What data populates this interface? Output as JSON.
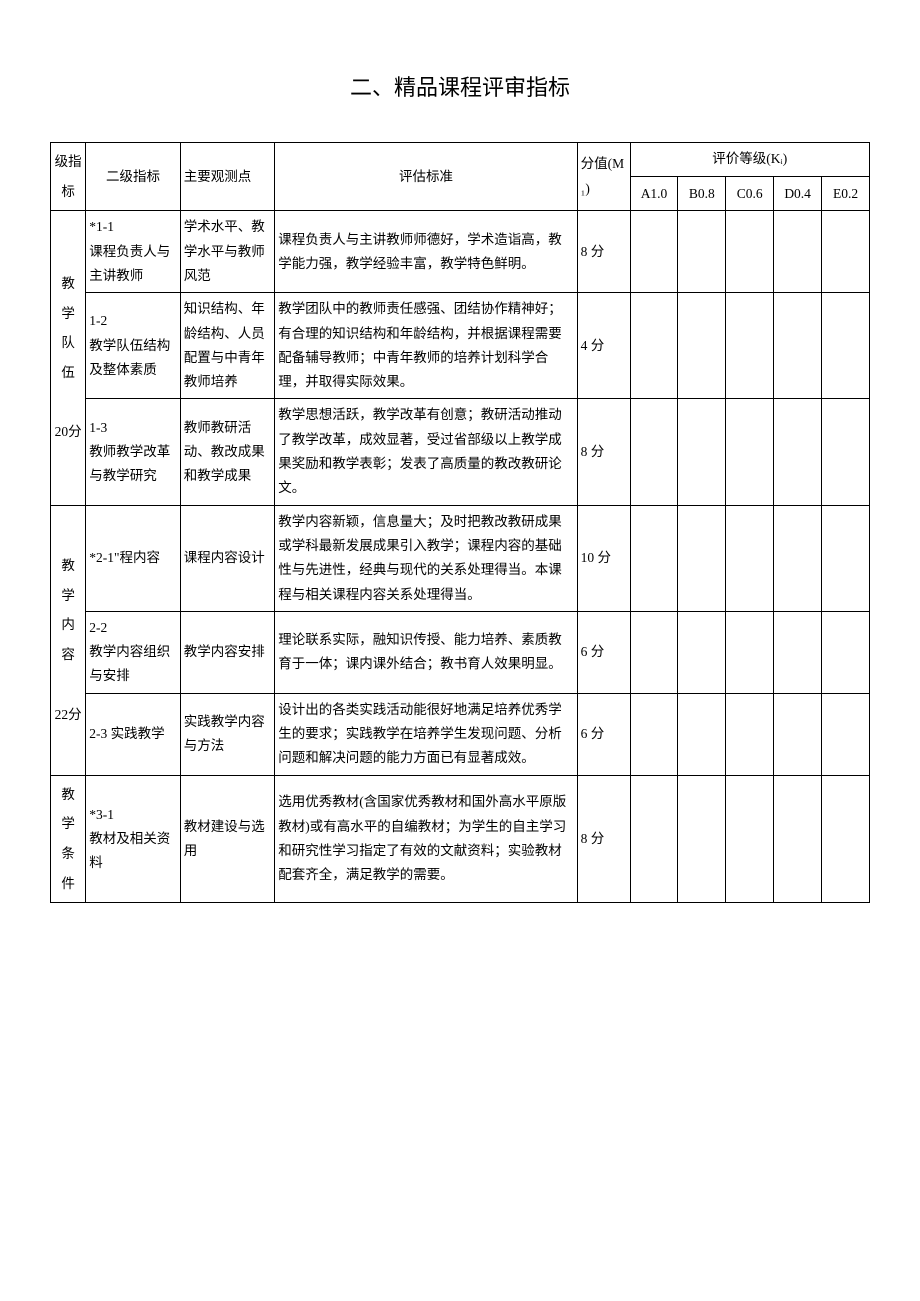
{
  "title": "二、精品课程评审指标",
  "header": {
    "l1": "级指标",
    "l2": "二级指标",
    "obs": "主要观测点",
    "std": "评估标准",
    "score": "分值(M₁)",
    "grade_group": "评价等级(Kᵢ)",
    "grades": [
      "A1.0",
      "B0.8",
      "C0.6",
      "D0.4",
      "E0.2"
    ]
  },
  "groups": [
    {
      "l1": "教学队伍",
      "l1_suffix": "20分",
      "rows": [
        {
          "l2": "*1-1\n课程负责人与主讲教师",
          "obs": "学术水平、教学水平与教师风范",
          "std": "课程负责人与主讲教师师德好，学术造诣高，教学能力强，教学经验丰富，教学特色鲜明。",
          "score": "8 分"
        },
        {
          "l2": "1-2\n教学队伍结构及整体素质",
          "obs": "知识结构、年龄结构、人员配置与中青年教师培养",
          "std": "教学团队中的教师责任感强、团结协作精神好；有合理的知识结构和年龄结构，并根据课程需要配备辅导教师；中青年教师的培养计划科学合理，并取得实际效果。",
          "score": "4 分"
        },
        {
          "l2": "1-3\n教师教学改革与教学研究",
          "obs": "教师教研活动、教改成果和教学成果",
          "std": "教学思想活跃，教学改革有创意；教研活动推动了教学改革，成效显著，受过省部级以上教学成果奖励和教学表彰；发表了高质量的教改教研论文。",
          "score": "8 分"
        }
      ]
    },
    {
      "l1": "教学内容",
      "l1_suffix": "22分",
      "rows": [
        {
          "l2": "*2-1\"程内容",
          "obs": "课程内容设计",
          "std": "教学内容新颖，信息量大；及时把教改教研成果或学科最新发展成果引入教学；课程内容的基础性与先进性，经典与现代的关系处理得当。本课程与相关课程内容关系处理得当。",
          "score": "10 分"
        },
        {
          "l2": "2-2\n教学内容组织与安排",
          "obs": "教学内容安排",
          "std": "理论联系实际，融知识传授、能力培养、素质教育于一体；课内课外结合；教书育人效果明显。",
          "score": "6 分"
        },
        {
          "l2": "2-3 实践教学",
          "obs": "实践教学内容与方法",
          "std": "设计出的各类实践活动能很好地满足培养优秀学生的要求；实践教学在培养学生发现问题、分析问题和解决问题的能力方面已有显著成效。",
          "score": "6 分"
        }
      ]
    },
    {
      "l1": "教学条件",
      "l1_suffix": "",
      "rows": [
        {
          "l2": "*3-1\n教材及相关资料",
          "obs": "教材建设与选用",
          "std": "选用优秀教材(含国家优秀教材和国外高水平原版教材)或有高水平的自编教材；为学生的自主学习和研究性学习指定了有效的文献资料；实验教材配套齐全，满足教学的需要。",
          "score": "8 分"
        }
      ]
    }
  ]
}
